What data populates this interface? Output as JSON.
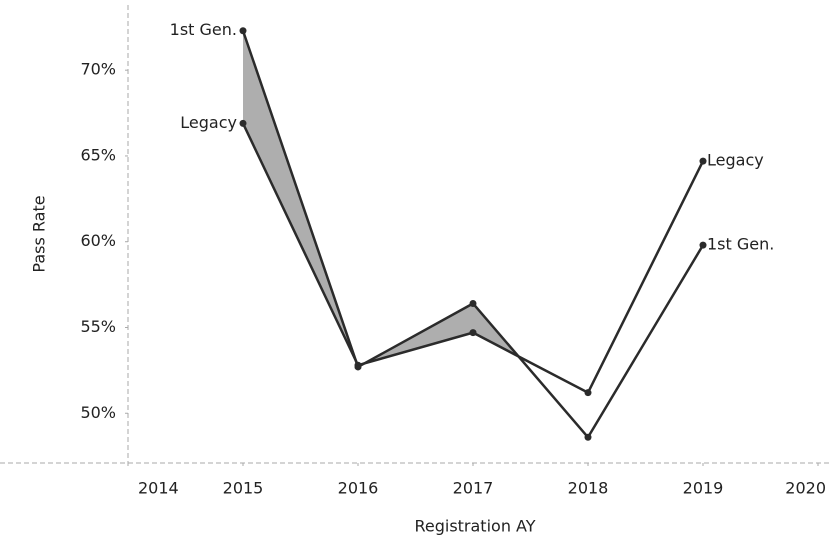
{
  "chart_data": {
    "type": "line",
    "x_label": "Registration AY",
    "y_label": "Pass Rate",
    "x": [
      2015,
      2016,
      2017,
      2018,
      2019
    ],
    "series": [
      {
        "name": "1st Gen.",
        "color": "#2b2b2b",
        "values": [
          72.3,
          52.7,
          56.4,
          48.6,
          59.8
        ]
      },
      {
        "name": "Legacy",
        "color": "#2b2b2b",
        "values": [
          66.9,
          52.8,
          54.7,
          51.2,
          64.7
        ]
      }
    ],
    "fill_between": {
      "color": "#9a9a9a"
    },
    "xlim": [
      2014,
      2020
    ],
    "xticks": [
      2014,
      2015,
      2016,
      2017,
      2018,
      2019,
      2020
    ],
    "ylim": [
      47.1,
      73.8
    ],
    "yticks": [
      {
        "value": 50,
        "label": "50%"
      },
      {
        "value": 55,
        "label": "55%"
      },
      {
        "value": 60,
        "label": "60%"
      },
      {
        "value": 65,
        "label": "65%"
      },
      {
        "value": 70,
        "label": "70%"
      }
    ],
    "grid": false
  }
}
